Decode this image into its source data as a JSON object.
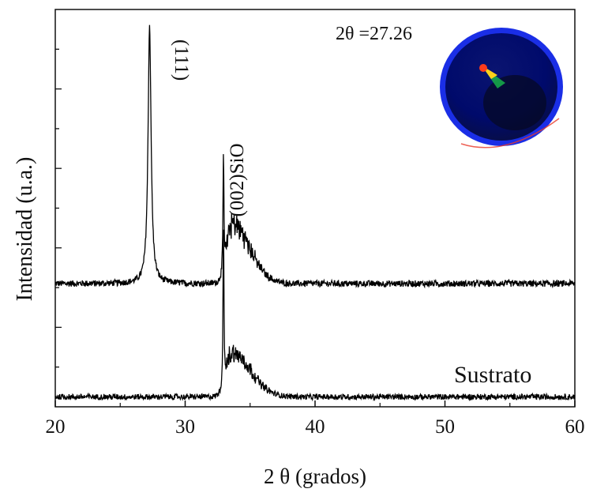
{
  "chart_data": {
    "type": "line",
    "xlabel": "2 θ (grados)",
    "ylabel": "Intensidad (u.a.)",
    "xlim": [
      20,
      60
    ],
    "ylim": [
      0,
      1
    ],
    "x_ticks": [
      "20",
      "30",
      "40",
      "50",
      "60"
    ],
    "grid": false,
    "series": [
      {
        "name": "",
        "baseline": 0.31,
        "noise": 0.008,
        "peaks": [
          {
            "center": 27.26,
            "height": 0.65,
            "width": 0.14
          },
          {
            "center": 32.95,
            "height": 0.3,
            "width": 0.04
          },
          {
            "center": 33.6,
            "height": 0.15,
            "width": 1.6
          }
        ]
      },
      {
        "name": "Sustrato",
        "baseline": 0.025,
        "noise": 0.007,
        "peaks": [
          {
            "center": 32.95,
            "height": 0.41,
            "width": 0.04
          },
          {
            "center": 33.6,
            "height": 0.11,
            "width": 1.7
          }
        ]
      }
    ],
    "annotations": [
      {
        "text": "(111)",
        "x": 27.26
      },
      {
        "text": "(002)SiO",
        "x": 33.4
      },
      {
        "text": "Sustrato",
        "x": 53
      },
      {
        "text": "2θ =27.26"
      }
    ],
    "inset": {
      "description": "pole figure",
      "colors": [
        "#1a2ee6",
        "#000a6b",
        "#18b24a",
        "#ff3b1a"
      ]
    },
    "line_color": "#000000"
  }
}
